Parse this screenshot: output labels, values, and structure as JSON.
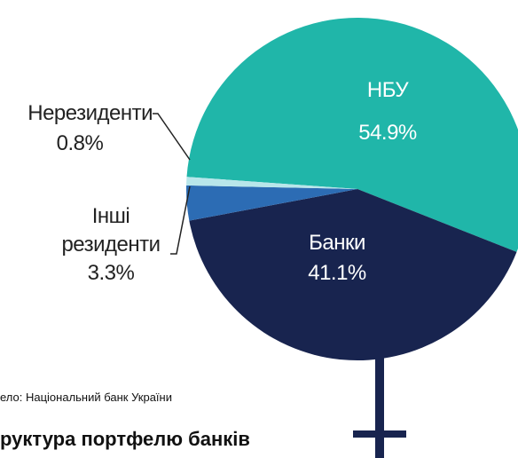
{
  "chart_data": {
    "type": "pie",
    "title": "руктура портфелю банків",
    "source": "ело: Національний банк України",
    "categories": [
      "НБУ",
      "Банки",
      "Інші резиденти",
      "Нерезиденти"
    ],
    "values": [
      54.9,
      41.1,
      3.3,
      0.8
    ],
    "value_labels": [
      "54.9%",
      "41.1%",
      "3.3%",
      "0.8%"
    ],
    "colors": [
      "#20b6a9",
      "#18244f",
      "#2c6cb4",
      "#b8e6ea"
    ]
  }
}
